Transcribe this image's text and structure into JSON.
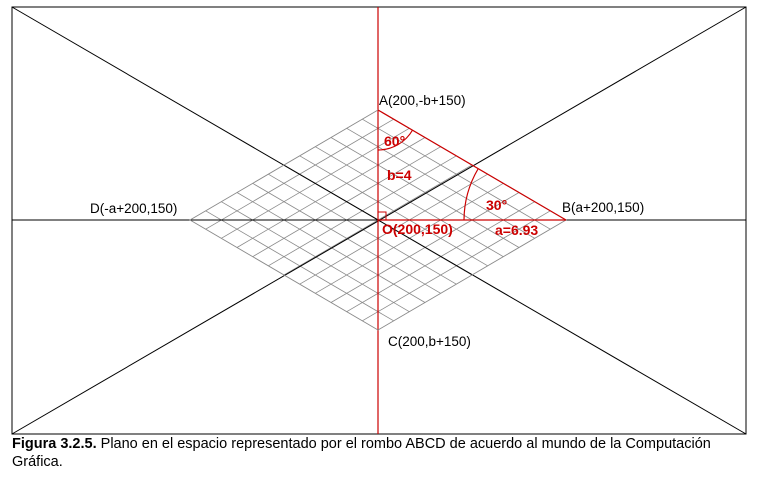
{
  "points": {
    "A": "A(200,-b+150)",
    "B": "B(a+200,150)",
    "C": "C(200,b+150)",
    "D": "D(-a+200,150)",
    "O": "O(200,150)"
  },
  "annotations": {
    "angle_top": "60°",
    "angle_right": "30°",
    "b_value": "b=4",
    "a_value": "a=6.93"
  },
  "grid": {
    "divisions": 12
  },
  "colors": {
    "red": "#cc0000",
    "grid": "#8a8a8a",
    "frame": "#000000"
  },
  "caption": {
    "label": "Figura 3.2.5.",
    "text": " Plano en el espacio representado por el rombo ABCD de acuerdo al mundo de la Computación Gráfica."
  }
}
